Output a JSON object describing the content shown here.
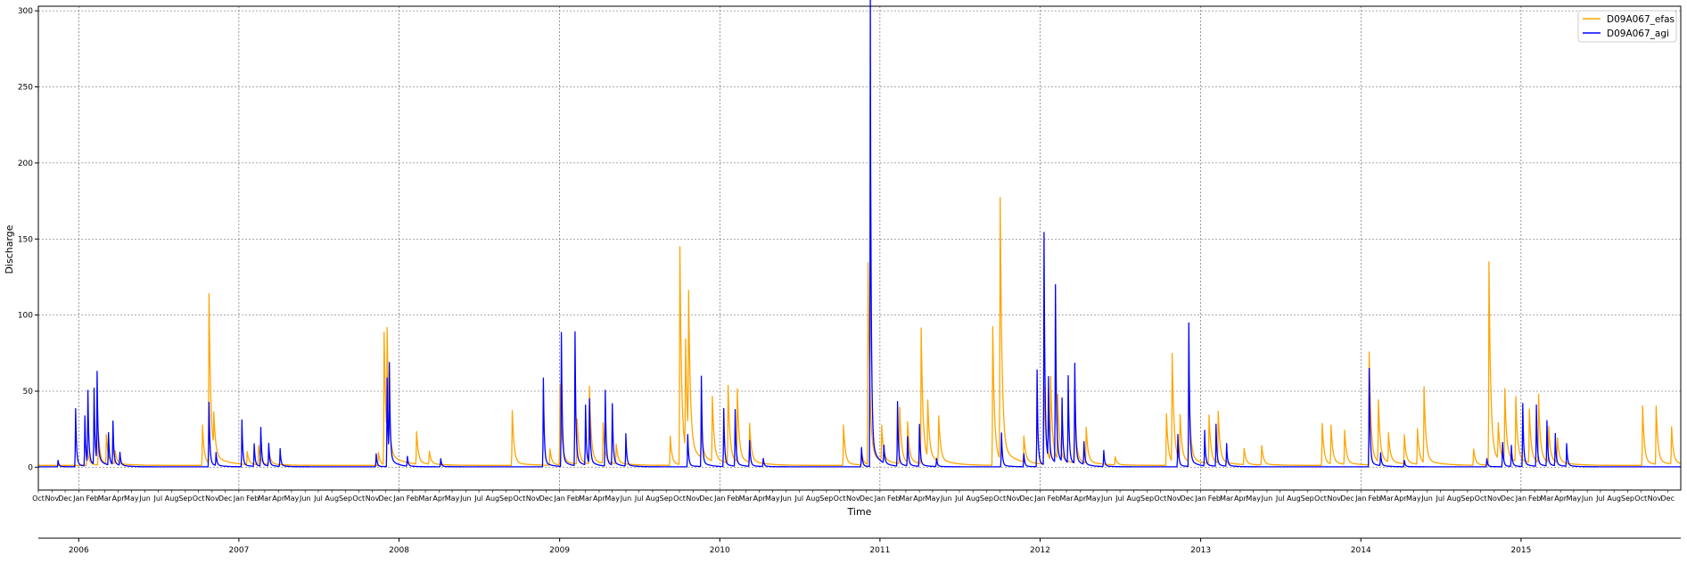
{
  "chart_data": {
    "type": "line",
    "title": "",
    "xlabel": "Time",
    "ylabel": "Discharge",
    "ylim": [
      -15,
      303
    ],
    "yticks": [
      0,
      50,
      100,
      150,
      200,
      250,
      300
    ],
    "xlim": [
      "2005-10-01",
      "2015-12-31"
    ],
    "grid": "major",
    "legend_position": "top-right",
    "year_labels": [
      "2006",
      "2007",
      "2008",
      "2009",
      "2010",
      "2011",
      "2012",
      "2013",
      "2014",
      "2015"
    ],
    "month_labels": [
      "Jan",
      "Feb",
      "Mar",
      "Apr",
      "May",
      "Jun",
      "Jul",
      "Aug",
      "Sep",
      "Oct",
      "Nov",
      "Dec"
    ],
    "series": [
      {
        "name": "D09A067_efas",
        "color": "#ffa500",
        "baseline": 1.2,
        "decay_days": 4,
        "events": [
          [
            "2006-01-20",
            12
          ],
          [
            "2006-02-15",
            20
          ],
          [
            "2006-03-05",
            18
          ],
          [
            "2006-03-25",
            8
          ],
          [
            "2006-10-10",
            25
          ],
          [
            "2006-10-25",
            105
          ],
          [
            "2006-11-05",
            22
          ],
          [
            "2007-01-20",
            8
          ],
          [
            "2007-02-15",
            12
          ],
          [
            "2007-03-10",
            10
          ],
          [
            "2007-11-15",
            8
          ],
          [
            "2007-11-28",
            82
          ],
          [
            "2007-12-05",
            68
          ],
          [
            "2008-02-10",
            20
          ],
          [
            "2008-03-10",
            8
          ],
          [
            "2008-09-15",
            34
          ],
          [
            "2008-12-10",
            10
          ],
          [
            "2009-01-02",
            50
          ],
          [
            "2009-02-10",
            28
          ],
          [
            "2009-03-10",
            48
          ],
          [
            "2009-04-10",
            25
          ],
          [
            "2009-05-10",
            12
          ],
          [
            "2009-09-10",
            18
          ],
          [
            "2009-10-02",
            135
          ],
          [
            "2009-10-15",
            68
          ],
          [
            "2009-10-22",
            89
          ],
          [
            "2009-11-20",
            18
          ],
          [
            "2009-12-15",
            40
          ],
          [
            "2010-01-20",
            48
          ],
          [
            "2010-02-10",
            45
          ],
          [
            "2010-03-10",
            24
          ],
          [
            "2010-10-10",
            25
          ],
          [
            "2010-11-20",
            8
          ],
          [
            "2010-12-05",
            125
          ],
          [
            "2011-01-05",
            22
          ],
          [
            "2011-02-15",
            35
          ],
          [
            "2011-03-05",
            25
          ],
          [
            "2011-04-05",
            84
          ],
          [
            "2011-04-20",
            35
          ],
          [
            "2011-05-15",
            28
          ],
          [
            "2011-09-15",
            86
          ],
          [
            "2011-10-02",
            162
          ],
          [
            "2011-11-25",
            16
          ],
          [
            "2012-01-10",
            48
          ],
          [
            "2012-01-25",
            52
          ],
          [
            "2012-02-10",
            40
          ],
          [
            "2012-03-20",
            35
          ],
          [
            "2012-04-15",
            22
          ],
          [
            "2012-06-20",
            5
          ],
          [
            "2012-10-15",
            32
          ],
          [
            "2012-10-28",
            67
          ],
          [
            "2012-11-15",
            28
          ],
          [
            "2012-12-05",
            48
          ],
          [
            "2013-01-20",
            30
          ],
          [
            "2013-02-10",
            32
          ],
          [
            "2013-04-10",
            10
          ],
          [
            "2013-05-20",
            12
          ],
          [
            "2013-10-05",
            26
          ],
          [
            "2013-10-25",
            24
          ],
          [
            "2013-11-25",
            21
          ],
          [
            "2014-01-20",
            70
          ],
          [
            "2014-02-10",
            38
          ],
          [
            "2014-03-05",
            18
          ],
          [
            "2014-04-10",
            18
          ],
          [
            "2014-05-10",
            22
          ],
          [
            "2014-05-25",
            47
          ],
          [
            "2014-09-15",
            10
          ],
          [
            "2014-10-20",
            126
          ],
          [
            "2014-11-10",
            22
          ],
          [
            "2014-11-25",
            44
          ],
          [
            "2014-12-20",
            40
          ],
          [
            "2015-01-20",
            33
          ],
          [
            "2015-02-10",
            42
          ],
          [
            "2015-03-05",
            22
          ],
          [
            "2015-03-25",
            15
          ],
          [
            "2015-10-05",
            37
          ],
          [
            "2015-11-05",
            36
          ],
          [
            "2015-12-10",
            23
          ]
        ]
      },
      {
        "name": "D09A067_agi",
        "color": "#0000ff",
        "baseline": 0.3,
        "decay_days": 2,
        "events": [
          [
            "2005-11-15",
            4
          ],
          [
            "2005-12-25",
            36
          ],
          [
            "2006-01-15",
            31
          ],
          [
            "2006-01-22",
            45
          ],
          [
            "2006-02-05",
            47
          ],
          [
            "2006-02-12",
            55
          ],
          [
            "2006-03-10",
            20
          ],
          [
            "2006-03-20",
            27
          ],
          [
            "2006-04-05",
            8
          ],
          [
            "2006-10-25",
            40
          ],
          [
            "2006-11-10",
            8
          ],
          [
            "2007-01-08",
            29
          ],
          [
            "2007-02-05",
            14
          ],
          [
            "2007-02-20",
            24
          ],
          [
            "2007-03-10",
            14
          ],
          [
            "2007-04-05",
            11
          ],
          [
            "2007-11-10",
            8
          ],
          [
            "2007-12-05",
            55
          ],
          [
            "2007-12-10",
            58
          ],
          [
            "2008-01-20",
            6
          ],
          [
            "2008-04-05",
            5
          ],
          [
            "2008-11-25",
            55
          ],
          [
            "2009-01-05",
            83
          ],
          [
            "2009-02-05",
            83
          ],
          [
            "2009-03-01",
            37
          ],
          [
            "2009-03-10",
            40
          ],
          [
            "2009-04-15",
            47
          ],
          [
            "2009-05-01",
            38
          ],
          [
            "2009-06-01",
            20
          ],
          [
            "2009-10-20",
            20
          ],
          [
            "2009-11-20",
            56
          ],
          [
            "2010-01-10",
            36
          ],
          [
            "2010-02-05",
            35
          ],
          [
            "2010-03-10",
            16
          ],
          [
            "2010-04-10",
            5
          ],
          [
            "2010-11-20",
            12
          ],
          [
            "2010-12-10",
            290
          ],
          [
            "2011-01-10",
            11
          ],
          [
            "2011-02-10",
            40
          ],
          [
            "2011-03-05",
            18
          ],
          [
            "2011-04-01",
            26
          ],
          [
            "2011-05-10",
            5
          ],
          [
            "2011-10-05",
            21
          ],
          [
            "2011-11-25",
            8
          ],
          [
            "2011-12-25",
            60
          ],
          [
            "2012-01-10",
            144
          ],
          [
            "2012-01-20",
            50
          ],
          [
            "2012-02-05",
            110
          ],
          [
            "2012-02-20",
            39
          ],
          [
            "2012-03-05",
            54
          ],
          [
            "2012-03-20",
            62
          ],
          [
            "2012-04-10",
            14
          ],
          [
            "2012-05-25",
            10
          ],
          [
            "2012-11-10",
            20
          ],
          [
            "2012-12-05",
            89
          ],
          [
            "2013-01-10",
            22
          ],
          [
            "2013-02-05",
            26
          ],
          [
            "2013-03-01",
            14
          ],
          [
            "2014-01-20",
            61
          ],
          [
            "2014-02-15",
            8
          ],
          [
            "2014-04-10",
            4
          ],
          [
            "2014-10-15",
            5
          ],
          [
            "2014-11-20",
            15
          ],
          [
            "2014-12-10",
            13
          ],
          [
            "2015-01-05",
            39
          ],
          [
            "2015-02-05",
            38
          ],
          [
            "2015-03-01",
            28
          ],
          [
            "2015-03-20",
            20
          ],
          [
            "2015-04-15",
            14
          ]
        ]
      }
    ]
  }
}
